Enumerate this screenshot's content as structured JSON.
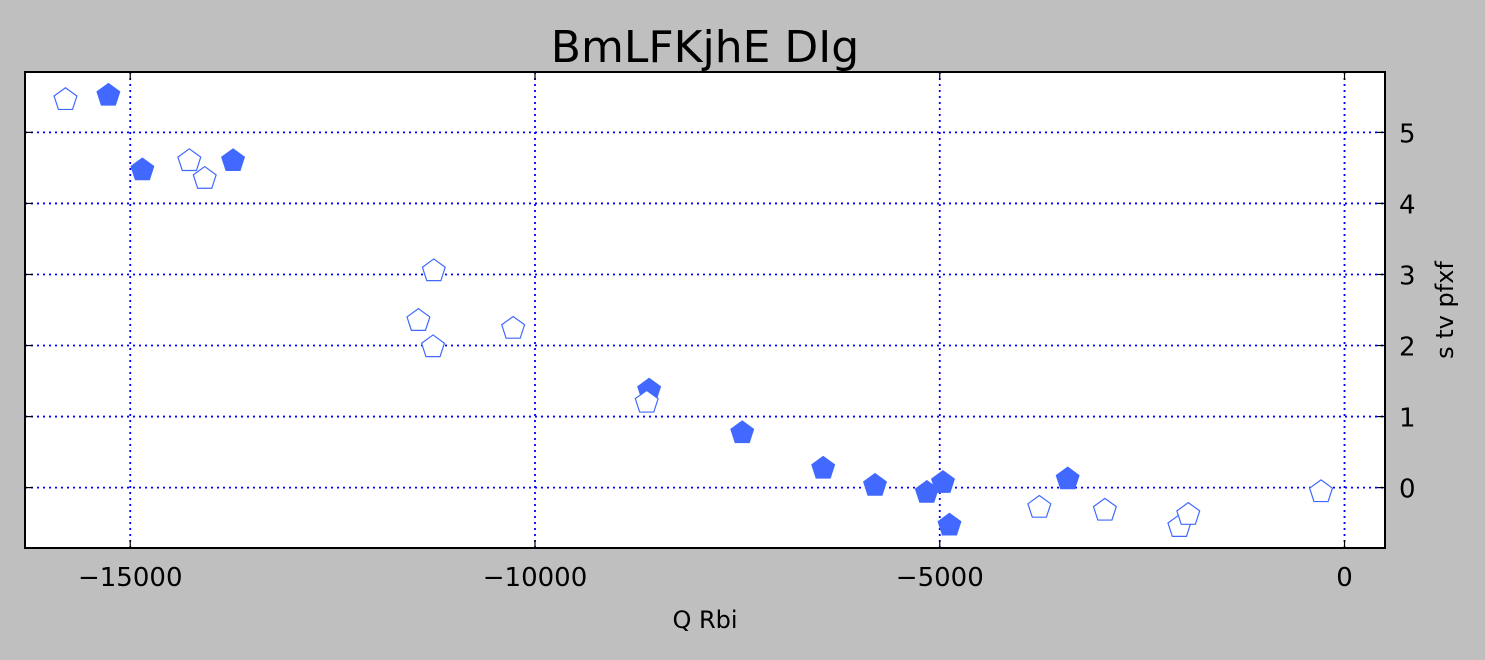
{
  "chart_data": {
    "type": "scatter",
    "title": "BmLFKjhE DIg",
    "xlabel": "Q Rbi",
    "ylabel": "s tv pfxf",
    "xlim": [
      -16300,
      500
    ],
    "ylim": [
      -0.85,
      5.85
    ],
    "xticks": [
      -15000,
      -10000,
      -5000,
      0
    ],
    "xtick_labels": [
      "−15000",
      "−10000",
      "−5000",
      "0"
    ],
    "yticks": [
      0,
      1,
      2,
      3,
      4,
      5
    ],
    "ytick_labels": [
      "0",
      "1",
      "2",
      "3",
      "4",
      "5"
    ],
    "y_axis_side": "right",
    "grid": true,
    "colors": {
      "marker": "#4169ff",
      "grid": "#0000ff",
      "background": "#bfbfbf",
      "plot_area": "#ffffff"
    },
    "series": [
      {
        "marker": "pentagon-filled",
        "points": [
          {
            "x": -15270,
            "y": 5.52
          },
          {
            "x": -14850,
            "y": 4.47
          },
          {
            "x": -13730,
            "y": 4.6
          },
          {
            "x": -8590,
            "y": 1.37
          },
          {
            "x": -7440,
            "y": 0.77
          },
          {
            "x": -6440,
            "y": 0.27
          },
          {
            "x": -5800,
            "y": 0.03
          },
          {
            "x": -5160,
            "y": -0.07
          },
          {
            "x": -4960,
            "y": 0.07
          },
          {
            "x": -4880,
            "y": -0.53
          },
          {
            "x": -3420,
            "y": 0.12
          }
        ]
      },
      {
        "marker": "pentagon-open",
        "points": [
          {
            "x": -15800,
            "y": 5.46
          },
          {
            "x": -14270,
            "y": 4.6
          },
          {
            "x": -14080,
            "y": 4.35
          },
          {
            "x": -11250,
            "y": 3.05
          },
          {
            "x": -11440,
            "y": 2.35
          },
          {
            "x": -11260,
            "y": 1.98
          },
          {
            "x": -10270,
            "y": 2.24
          },
          {
            "x": -8620,
            "y": 1.2
          },
          {
            "x": -3770,
            "y": -0.28
          },
          {
            "x": -2960,
            "y": -0.32
          },
          {
            "x": -2040,
            "y": -0.55
          },
          {
            "x": -1930,
            "y": -0.38
          },
          {
            "x": -290,
            "y": -0.06
          }
        ]
      }
    ]
  }
}
